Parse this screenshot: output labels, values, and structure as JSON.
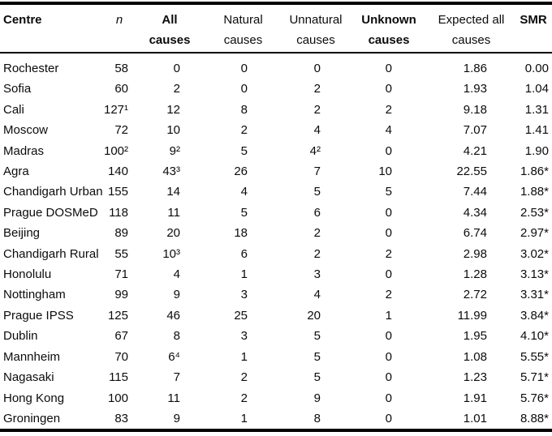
{
  "table": {
    "columns": [
      {
        "l1": "Centre",
        "l2": ""
      },
      {
        "l1": "n",
        "l2": ""
      },
      {
        "l1": "All",
        "l2": "causes"
      },
      {
        "l1": "Natural",
        "l2": "causes"
      },
      {
        "l1": "Unnatural",
        "l2": "causes"
      },
      {
        "l1": "Unknown",
        "l2": "causes"
      },
      {
        "l1": "Expected all",
        "l2": "causes"
      },
      {
        "l1": "SMR",
        "l2": ""
      }
    ],
    "rows": [
      {
        "centre": "Rochester",
        "n": "58",
        "all": "0",
        "natural": "0",
        "unnatural": "0",
        "unknown": "0",
        "expected": "1.86",
        "smr": "0.00"
      },
      {
        "centre": "Sofia",
        "n": "60",
        "all": "2",
        "natural": "0",
        "unnatural": "2",
        "unknown": "0",
        "expected": "1.93",
        "smr": "1.04"
      },
      {
        "centre": "Cali",
        "n": "127¹",
        "all": "12",
        "natural": "8",
        "unnatural": "2",
        "unknown": "2",
        "expected": "9.18",
        "smr": "1.31"
      },
      {
        "centre": "Moscow",
        "n": "72",
        "all": "10",
        "natural": "2",
        "unnatural": "4",
        "unknown": "4",
        "expected": "7.07",
        "smr": "1.41"
      },
      {
        "centre": "Madras",
        "n": "100²",
        "all": "9²",
        "natural": "5",
        "unnatural": "4²",
        "unknown": "0",
        "expected": "4.21",
        "smr": "1.90"
      },
      {
        "centre": "Agra",
        "n": "140",
        "all": "43³",
        "natural": "26",
        "unnatural": "7",
        "unknown": "10",
        "expected": "22.55",
        "smr": "1.86*"
      },
      {
        "centre": "Chandigarh Urban",
        "n": "155",
        "all": "14",
        "natural": "4",
        "unnatural": "5",
        "unknown": "5",
        "expected": "7.44",
        "smr": "1.88*"
      },
      {
        "centre": "Prague DOSMeD",
        "n": "118",
        "all": "11",
        "natural": "5",
        "unnatural": "6",
        "unknown": "0",
        "expected": "4.34",
        "smr": "2.53*"
      },
      {
        "centre": "Beijing",
        "n": "89",
        "all": "20",
        "natural": "18",
        "unnatural": "2",
        "unknown": "0",
        "expected": "6.74",
        "smr": "2.97*"
      },
      {
        "centre": "Chandigarh Rural",
        "n": "55",
        "all": "10³",
        "natural": "6",
        "unnatural": "2",
        "unknown": "2",
        "expected": "2.98",
        "smr": "3.02*"
      },
      {
        "centre": "Honolulu",
        "n": "71",
        "all": "4",
        "natural": "1",
        "unnatural": "3",
        "unknown": "0",
        "expected": "1.28",
        "smr": "3.13*"
      },
      {
        "centre": "Nottingham",
        "n": "99",
        "all": "9",
        "natural": "3",
        "unnatural": "4",
        "unknown": "2",
        "expected": "2.72",
        "smr": "3.31*"
      },
      {
        "centre": "Prague IPSS",
        "n": "125",
        "all": "46",
        "natural": "25",
        "unnatural": "20",
        "unknown": "1",
        "expected": "11.99",
        "smr": "3.84*"
      },
      {
        "centre": "Dublin",
        "n": "67",
        "all": "8",
        "natural": "3",
        "unnatural": "5",
        "unknown": "0",
        "expected": "1.95",
        "smr": "4.10*"
      },
      {
        "centre": "Mannheim",
        "n": "70",
        "all": "6⁴",
        "natural": "1",
        "unnatural": "5",
        "unknown": "0",
        "expected": "1.08",
        "smr": "5.55*"
      },
      {
        "centre": "Nagasaki",
        "n": "115",
        "all": "7",
        "natural": "2",
        "unnatural": "5",
        "unknown": "0",
        "expected": "1.23",
        "smr": "5.71*"
      },
      {
        "centre": "Hong Kong",
        "n": "100",
        "all": "11",
        "natural": "2",
        "unnatural": "9",
        "unknown": "0",
        "expected": "1.91",
        "smr": "5.76*"
      },
      {
        "centre": "Groningen",
        "n": "83",
        "all": "9",
        "natural": "1",
        "unnatural": "8",
        "unknown": "0",
        "expected": "1.01",
        "smr": "8.88*"
      }
    ]
  }
}
